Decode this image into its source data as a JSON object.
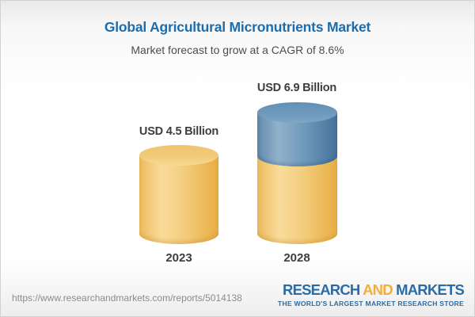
{
  "header": {
    "title": "Global Agricultural Micronutrients Market",
    "subtitle": "Market forecast to grow at a CAGR of 8.6%"
  },
  "chart_data": {
    "type": "bar",
    "variant": "3d-cylinder-infographic",
    "categories": [
      "2023",
      "2028"
    ],
    "values": [
      4.5,
      6.9
    ],
    "unit": "USD Billion",
    "value_labels": [
      "USD 4.5 Billion",
      "USD 6.9 Billion"
    ],
    "title": "Global Agricultural Micronutrients Market",
    "subtitle": "Market forecast to grow at a CAGR of 8.6%",
    "cagr_percent": 8.6,
    "legend_position": "none",
    "grid": false,
    "colors": {
      "base_segment": "#F2C877",
      "growth_segment": "#6B97BB",
      "title_text": "#1D6CAB",
      "label_text": "#3D3D3D"
    },
    "notes": "2028 cylinder is split: lower yellow portion equals the 2023 base value, upper blue portion represents growth from 4.5 to 6.9"
  },
  "footer": {
    "url": "https://www.researchandmarkets.com/reports/5014138",
    "logo": {
      "part1": "RESEARCH",
      "part2": " AND ",
      "part3": "MARKETS",
      "tagline": "THE WORLD'S LARGEST MARKET RESEARCH STORE"
    }
  }
}
